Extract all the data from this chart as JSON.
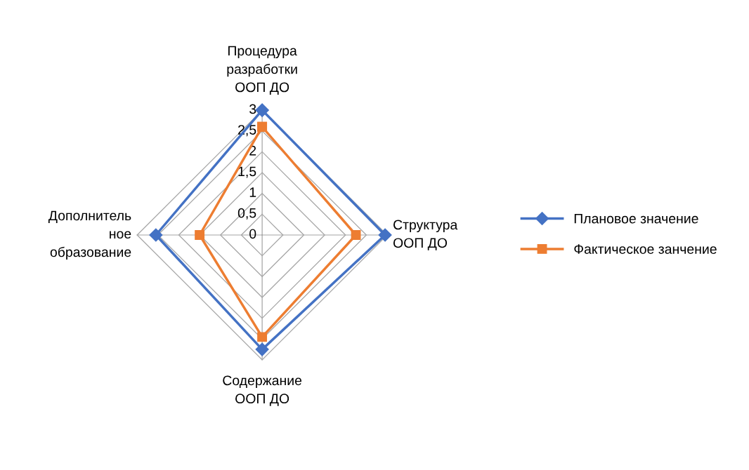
{
  "chart_data": {
    "type": "radar",
    "categories": [
      "Процедура\nразработки\nООП ДО",
      "Структура\nООП ДО",
      "Содержание\nООП ДО",
      "Дополнитель\nное\nобразование"
    ],
    "series": [
      {
        "name": "Плановое значение",
        "color": "#4472c4",
        "marker": "diamond",
        "values": [
          3,
          2.95,
          2.75,
          2.55
        ]
      },
      {
        "name": "Фактическое занчение",
        "color": "#ed7d31",
        "marker": "square",
        "values": [
          2.6,
          2.25,
          2.45,
          1.5
        ]
      }
    ],
    "ylim": [
      0,
      3
    ],
    "yticks": [
      {
        "value": 0,
        "label": "0"
      },
      {
        "value": 0.5,
        "label": "0,5"
      },
      {
        "value": 1,
        "label": "1"
      },
      {
        "value": 1.5,
        "label": "1,5"
      },
      {
        "value": 2,
        "label": "2"
      },
      {
        "value": 2.5,
        "label": "2,5"
      },
      {
        "value": 3,
        "label": "3"
      }
    ],
    "grid": true,
    "legend": "right"
  }
}
